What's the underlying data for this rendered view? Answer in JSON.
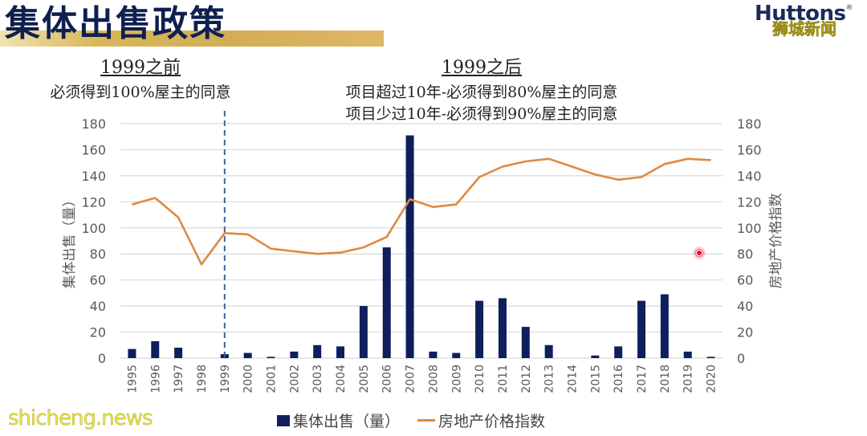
{
  "slide": {
    "title": "集体出售政策",
    "logo": "Huttons",
    "logo_mark": "®",
    "watermark_cn": "狮城新闻",
    "watermark_site": "shicheng.news"
  },
  "annotations": {
    "before": {
      "heading": "1999之前",
      "lines": [
        "必须得到100%屋主的同意"
      ]
    },
    "after": {
      "heading": "1999之后",
      "lines": [
        "项目超过10年-必须得到80%屋主的同意",
        "项目少过10年-必须得到90%屋主的同意"
      ]
    }
  },
  "legend": {
    "bar_label": "集体出售（量）",
    "line_label": "房地产价格指数"
  },
  "colors": {
    "bar": "#0e1f5b",
    "line": "#de8a3f",
    "divider": "#3f5f9a",
    "grid": "#d9d9d9"
  },
  "chart_data": {
    "type": "bar",
    "combo": "bar+line (dual axis)",
    "title": "集体出售政策",
    "categories": [
      "1995",
      "1996",
      "1997",
      "1998",
      "1999",
      "2000",
      "2001",
      "2002",
      "2003",
      "2004",
      "2005",
      "2006",
      "2007",
      "2008",
      "2009",
      "2010",
      "2011",
      "2012",
      "2013",
      "2014",
      "2015",
      "2016",
      "2017",
      "2018",
      "2019",
      "2020"
    ],
    "series": [
      {
        "name": "集体出售（量）",
        "type": "bar",
        "axis": "left",
        "values": [
          7,
          13,
          8,
          0,
          3,
          4,
          1,
          5,
          10,
          9,
          40,
          85,
          171,
          5,
          4,
          44,
          46,
          24,
          10,
          0,
          2,
          9,
          44,
          49,
          5,
          1
        ]
      },
      {
        "name": "房地产价格指数",
        "type": "line",
        "axis": "right",
        "values": [
          118,
          123,
          108,
          72,
          96,
          95,
          84,
          82,
          80,
          81,
          85,
          93,
          122,
          116,
          118,
          139,
          147,
          151,
          153,
          147,
          141,
          137,
          139,
          149,
          153,
          152
        ]
      }
    ],
    "xlabel": "",
    "ylabel": "集体出售（量）",
    "y2label": "房地产价格指数",
    "ylim": [
      0,
      180
    ],
    "y2lim": [
      0,
      180
    ],
    "yticks": [
      0,
      20,
      40,
      60,
      80,
      100,
      120,
      140,
      160,
      180
    ],
    "grid": true,
    "legend_position": "bottom",
    "annotations": [
      {
        "type": "vertical-dashed-line",
        "at": "1999"
      }
    ]
  }
}
